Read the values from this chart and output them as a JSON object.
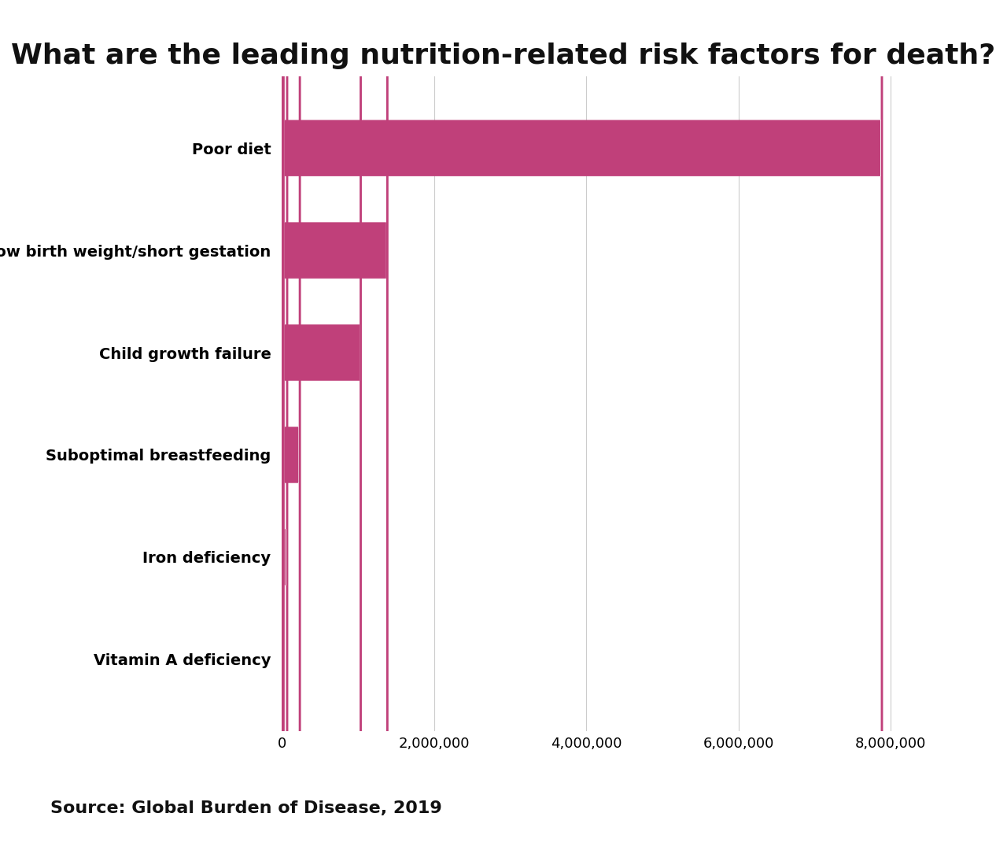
{
  "title": "What are the leading nutrition-related risk factors for death?",
  "categories": [
    "Vitamin A deficiency",
    "Iron deficiency",
    "Suboptimal breastfeeding",
    "Child growth failure",
    "Low birth weight/short gestation",
    "Poor diet"
  ],
  "values": [
    25000,
    83000,
    250000,
    1050000,
    1400000,
    7900000
  ],
  "bar_color": "#c0407a",
  "background_color": "#ffffff",
  "xlim": [
    0,
    9000000
  ],
  "xticks": [
    0,
    2000000,
    4000000,
    6000000,
    8000000
  ],
  "xtick_labels": [
    "0",
    "2,000,000",
    "4,000,000",
    "6,000,000",
    "8,000,000"
  ],
  "source_text": "Source: Global Burden of Disease, 2019",
  "bar_height": 0.55,
  "title_fontsize": 26,
  "label_fontsize": 14,
  "tick_fontsize": 13,
  "source_fontsize": 16
}
